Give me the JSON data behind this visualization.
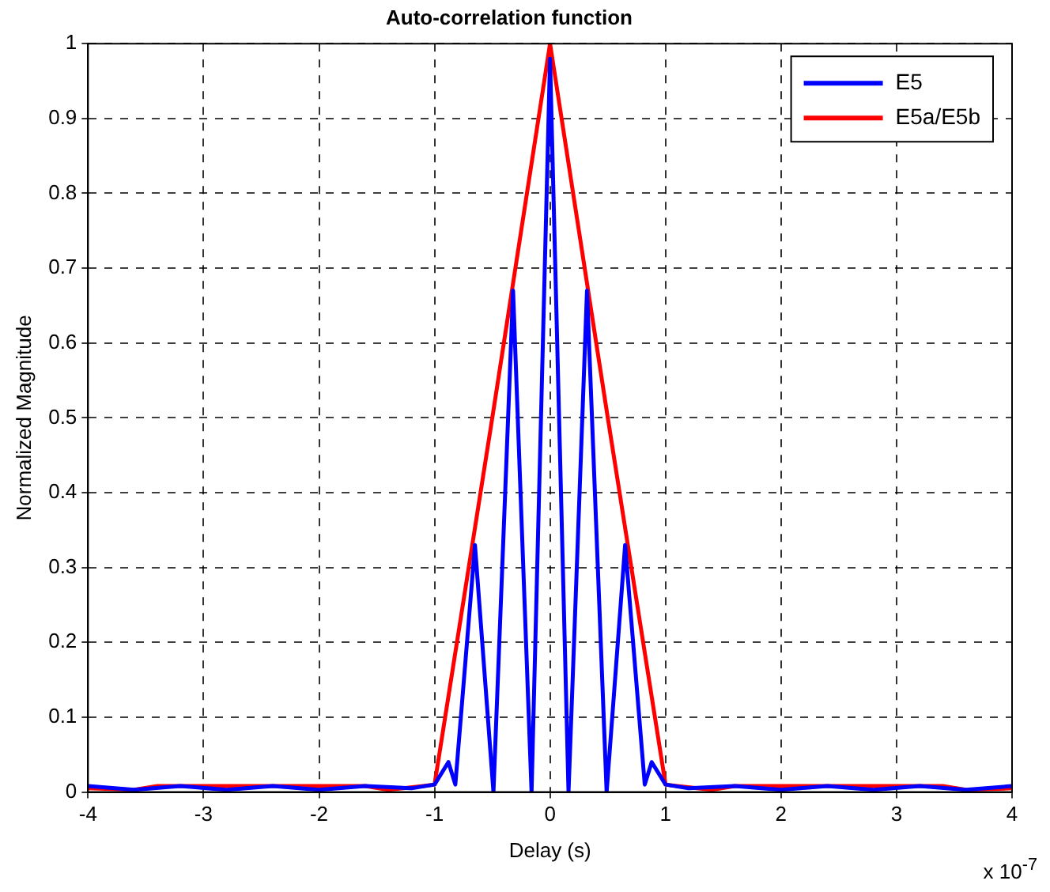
{
  "chart_data": {
    "type": "line",
    "title": "Auto-correlation function",
    "xlabel": "Delay (s)",
    "ylabel": "Normalized Magnitude",
    "annotations": [
      "x 10$^{-7}$"
    ],
    "series": [
      {
        "name": "E5",
        "color": "#0000ff",
        "x": [
          -4,
          -3.6,
          -3.2,
          -2.8,
          -2.4,
          -2,
          -1.6,
          -1.2,
          -1,
          -0.88,
          -0.82,
          -0.65,
          -0.49,
          -0.32,
          -0.16,
          0,
          0.16,
          0.32,
          0.49,
          0.65,
          0.82,
          0.88,
          1,
          1.2,
          1.6,
          2,
          2.4,
          2.8,
          3.2,
          3.6,
          4
        ],
        "values": [
          0.008,
          0.003,
          0.008,
          0.003,
          0.008,
          0.003,
          0.008,
          0.005,
          0.01,
          0.04,
          0.01,
          0.33,
          0,
          0.67,
          0,
          0.98,
          0,
          0.67,
          0,
          0.33,
          0.01,
          0.04,
          0.01,
          0.005,
          0.008,
          0.003,
          0.008,
          0.003,
          0.008,
          0.003,
          0.008
        ]
      },
      {
        "name": "E5a/E5b",
        "color": "#ff0000",
        "x": [
          -4,
          -3.6,
          -3.4,
          -1.6,
          -1.4,
          -1.1,
          -1,
          -0.5,
          0,
          0.5,
          1,
          1.1,
          1.4,
          1.6,
          3.4,
          3.6,
          4
        ],
        "values": [
          0.005,
          0.003,
          0.008,
          0.008,
          0.003,
          0.008,
          0.01,
          0.5,
          1,
          0.5,
          0.01,
          0.008,
          0.003,
          0.008,
          0.008,
          0.003,
          0.005
        ]
      }
    ],
    "xlim": [
      -4,
      4
    ],
    "xticks": [
      -4,
      -3,
      -2,
      -1,
      0,
      1,
      2,
      3,
      4
    ],
    "ylim": [
      0,
      1
    ],
    "yticks": [
      0,
      0.1,
      0.2,
      0.3,
      0.4,
      0.5,
      0.6,
      0.7,
      0.8,
      0.9,
      1
    ],
    "grid": true,
    "legend": "top right",
    "line_style": "solid",
    "marker": "none"
  }
}
